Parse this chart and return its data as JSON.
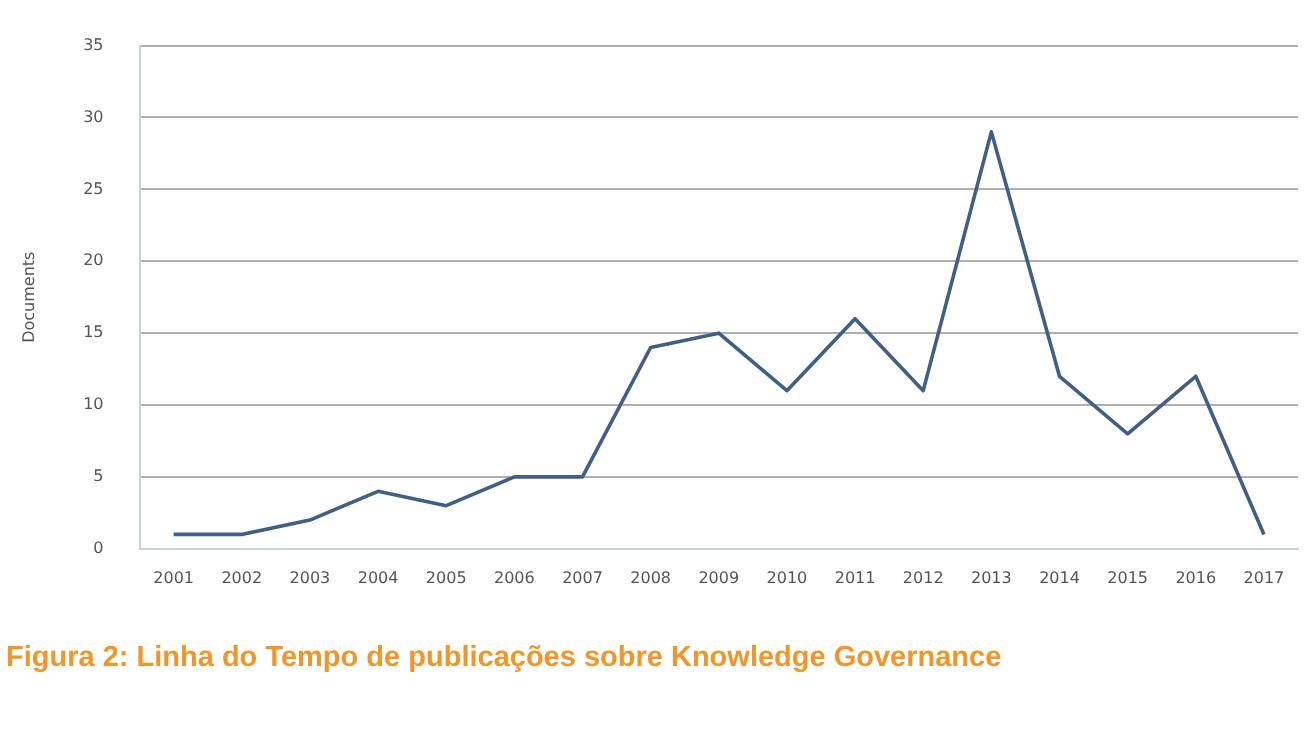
{
  "chart_data": {
    "type": "line",
    "title": "Figura 2: Linha do Tempo de publicações sobre Knowledge Governance",
    "ylabel": "Documents",
    "categories": [
      "2001",
      "2002",
      "2003",
      "2004",
      "2005",
      "2006",
      "2007",
      "2008",
      "2009",
      "2010",
      "2011",
      "2012",
      "2013",
      "2014",
      "2015",
      "2016",
      "2017"
    ],
    "series": [
      {
        "color": "#3f5f87",
        "values": [
          1,
          1,
          2,
          4,
          3,
          5,
          5,
          14,
          15,
          11,
          16,
          11,
          29,
          12,
          8,
          12,
          1
        ]
      }
    ],
    "ylim": [
      0,
      35
    ],
    "yticks": [
      0,
      5,
      10,
      15,
      20,
      25,
      30,
      35
    ],
    "grid": "y",
    "legend": false,
    "marker": "none",
    "line_style": "solid"
  }
}
